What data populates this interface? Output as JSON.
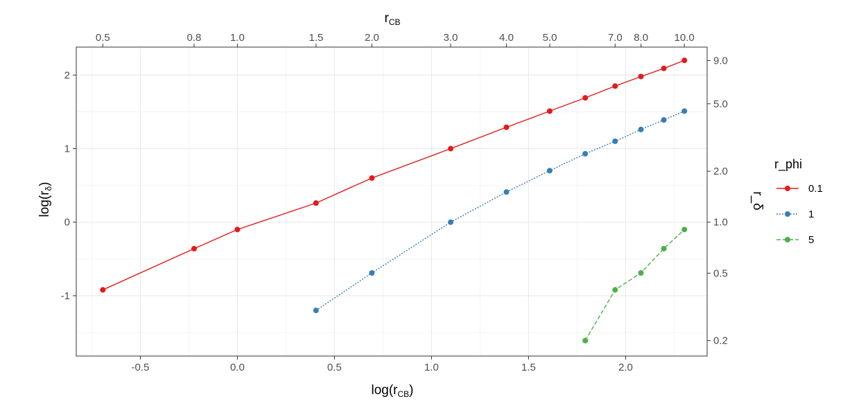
{
  "chart_data": {
    "type": "line",
    "title": "",
    "xlabel": {
      "main": "log(r",
      "sub": "CB",
      "close": ")"
    },
    "ylabel": {
      "main": "log(r",
      "sub": "δ",
      "close": ")"
    },
    "top_label": {
      "main": "r",
      "sub": "CB"
    },
    "right_label": "r_δ",
    "xlim": [
      -0.83,
      2.42
    ],
    "ylim": [
      -1.82,
      2.38
    ],
    "x_ticks": [
      -0.5,
      0.0,
      0.5,
      1.0,
      1.5,
      2.0
    ],
    "x_tick_labels": [
      "-0.5",
      "0.0",
      "0.5",
      "1.0",
      "1.5",
      "2.0"
    ],
    "y_ticks": [
      -1,
      0,
      1,
      2
    ],
    "y_tick_labels": [
      "-1",
      "0",
      "1",
      "2"
    ],
    "top_ticks": [
      0.5,
      0.8,
      1.0,
      1.5,
      2.0,
      3.0,
      4.0,
      5.0,
      7.0,
      8.0,
      10.0
    ],
    "top_tick_labels": [
      "0.5",
      "0.8",
      "1.0",
      "1.5",
      "2.0",
      "3.0",
      "4.0",
      "5.0",
      "7.0",
      "8.0",
      "10.0"
    ],
    "right_ticks": [
      0.2,
      0.5,
      1.0,
      2.0,
      5.0,
      9.0
    ],
    "right_tick_labels": [
      "0.2",
      "0.5",
      "1.0",
      "2.0",
      "5.0",
      "9.0"
    ],
    "grid": true,
    "legend": {
      "title": "r_phi",
      "position": "right"
    },
    "series": [
      {
        "name": "0.1",
        "color": "#e41a1c",
        "dash": "solid",
        "x": [
          -0.693,
          -0.223,
          0.0,
          0.405,
          0.693,
          1.099,
          1.386,
          1.609,
          1.792,
          1.946,
          2.079,
          2.197,
          2.303
        ],
        "y": [
          -0.92,
          -0.36,
          -0.1,
          0.26,
          0.6,
          1.0,
          1.29,
          1.51,
          1.69,
          1.85,
          1.98,
          2.09,
          2.2
        ]
      },
      {
        "name": "1",
        "color": "#377eb8",
        "dash": "dotted",
        "x": [
          0.405,
          0.693,
          1.099,
          1.386,
          1.609,
          1.792,
          1.946,
          2.079,
          2.197,
          2.303
        ],
        "y": [
          -1.2,
          -0.69,
          0.0,
          0.41,
          0.7,
          0.93,
          1.1,
          1.26,
          1.39,
          1.51
        ]
      },
      {
        "name": "5",
        "color": "#4daf4a",
        "dash": "dashed",
        "x": [
          1.792,
          1.946,
          2.079,
          2.197,
          2.303
        ],
        "y": [
          -1.61,
          -0.92,
          -0.69,
          -0.36,
          -0.1
        ]
      }
    ]
  }
}
